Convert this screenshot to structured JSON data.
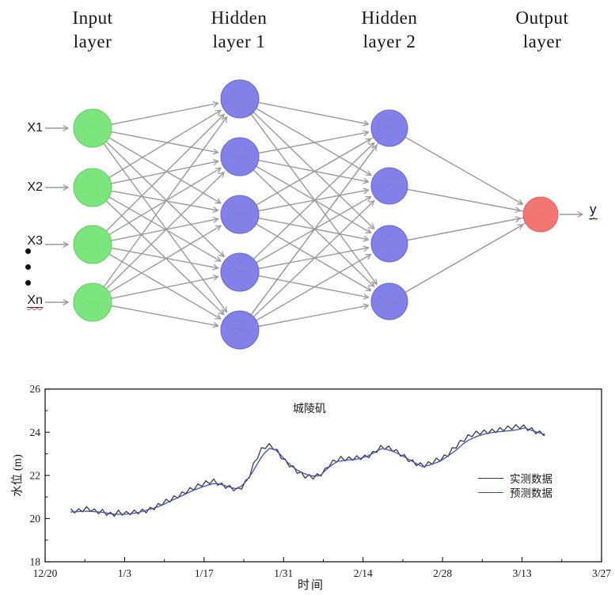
{
  "diagram": {
    "layer_titles": [
      {
        "line1": "Input",
        "line2": "layer"
      },
      {
        "line1": "Hidden",
        "line2": "layer 1"
      },
      {
        "line1": "Hidden",
        "line2": "layer 2"
      },
      {
        "line1": "Output",
        "line2": "layer"
      }
    ],
    "input_labels": [
      "X1",
      "X2",
      "X3",
      "Xn"
    ],
    "output_label": "y",
    "node_counts": [
      4,
      5,
      4,
      1
    ],
    "colors": {
      "input_fill": "#7de57d",
      "input_stroke": "#5ccf5c",
      "hidden_fill": "#8181e8",
      "hidden_stroke": "#6767d6",
      "output_fill": "#f27672",
      "output_stroke": "#e25f5b",
      "edge": "#9a9a9a",
      "accent_edge": "#8d8de8"
    }
  },
  "chart_data": {
    "type": "line",
    "title": "城陵矶",
    "xlabel": "时间",
    "ylabel": "水位 (m)",
    "x_unit": "days since 12/20",
    "xlim": [
      0,
      98
    ],
    "ylim": [
      18,
      26
    ],
    "x_ticks": [
      {
        "d": 0,
        "label": "12/20"
      },
      {
        "d": 14,
        "label": "1/3"
      },
      {
        "d": 28,
        "label": "1/17"
      },
      {
        "d": 42,
        "label": "1/31"
      },
      {
        "d": 56,
        "label": "2/14"
      },
      {
        "d": 70,
        "label": "2/28"
      },
      {
        "d": 84,
        "label": "3/13"
      },
      {
        "d": 98,
        "label": "3/27"
      }
    ],
    "x_minor_ticks": [
      7,
      21,
      35,
      49,
      63,
      77,
      91
    ],
    "y_ticks": [
      18,
      20,
      22,
      24,
      26
    ],
    "y_minor_ticks": [
      19,
      21,
      23,
      25
    ],
    "grid": false,
    "legend_position": "right-middle",
    "series": [
      {
        "name": "实测数据",
        "color": "#3b3b3b",
        "style": "jagged",
        "noise_amplitude": 0.12,
        "noise_step_days": 0.7,
        "points": [
          [
            4.5,
            20.4
          ],
          [
            6,
            20.35
          ],
          [
            7,
            20.45
          ],
          [
            8,
            20.4
          ],
          [
            9,
            20.3
          ],
          [
            10,
            20.35
          ],
          [
            11,
            20.25
          ],
          [
            12,
            20.2
          ],
          [
            13,
            20.3
          ],
          [
            14,
            20.2
          ],
          [
            15,
            20.25
          ],
          [
            16,
            20.3
          ],
          [
            17,
            20.35
          ],
          [
            18,
            20.4
          ],
          [
            19,
            20.5
          ],
          [
            20,
            20.6
          ],
          [
            21,
            20.75
          ],
          [
            22,
            20.85
          ],
          [
            23,
            21.0
          ],
          [
            24,
            21.15
          ],
          [
            25,
            21.3
          ],
          [
            26,
            21.4
          ],
          [
            27,
            21.5
          ],
          [
            28,
            21.6
          ],
          [
            29.5,
            21.75
          ],
          [
            31,
            21.6
          ],
          [
            32.5,
            21.45
          ],
          [
            34,
            21.3
          ],
          [
            35,
            21.5
          ],
          [
            36,
            22.0
          ],
          [
            37,
            22.7
          ],
          [
            38,
            23.2
          ],
          [
            39,
            23.4
          ],
          [
            40,
            23.35
          ],
          [
            41,
            23.05
          ],
          [
            42,
            22.7
          ],
          [
            43.5,
            22.4
          ],
          [
            45,
            22.1
          ],
          [
            46,
            21.95
          ],
          [
            47.5,
            21.9
          ],
          [
            49,
            22.1
          ],
          [
            50,
            22.5
          ],
          [
            51,
            22.7
          ],
          [
            52,
            22.8
          ],
          [
            53.5,
            22.75
          ],
          [
            55,
            22.8
          ],
          [
            56.5,
            22.85
          ],
          [
            58,
            23.1
          ],
          [
            59,
            23.3
          ],
          [
            60,
            23.3
          ],
          [
            61,
            23.2
          ],
          [
            62.5,
            23.0
          ],
          [
            64,
            22.75
          ],
          [
            65.5,
            22.55
          ],
          [
            66.5,
            22.45
          ],
          [
            68,
            22.55
          ],
          [
            69,
            22.7
          ],
          [
            70,
            22.8
          ],
          [
            71,
            23.0
          ],
          [
            72,
            23.3
          ],
          [
            73.5,
            23.6
          ],
          [
            75,
            23.85
          ],
          [
            76.5,
            24.0
          ],
          [
            78,
            24.05
          ],
          [
            80,
            24.1
          ],
          [
            82,
            24.2
          ],
          [
            84,
            24.3
          ],
          [
            85.5,
            24.15
          ],
          [
            87,
            23.95
          ],
          [
            88,
            23.9
          ]
        ]
      },
      {
        "name": "预测数据",
        "color": "#3f51c1",
        "style": "smooth",
        "points": [
          [
            4.5,
            20.3
          ],
          [
            7,
            20.35
          ],
          [
            10,
            20.3
          ],
          [
            12,
            20.2
          ],
          [
            14,
            20.2
          ],
          [
            16,
            20.25
          ],
          [
            18,
            20.4
          ],
          [
            20,
            20.55
          ],
          [
            22,
            20.8
          ],
          [
            24,
            21.05
          ],
          [
            26,
            21.3
          ],
          [
            28,
            21.5
          ],
          [
            30,
            21.65
          ],
          [
            32,
            21.5
          ],
          [
            34,
            21.35
          ],
          [
            36,
            21.9
          ],
          [
            37.5,
            22.6
          ],
          [
            39,
            23.2
          ],
          [
            40,
            23.3
          ],
          [
            41,
            23.1
          ],
          [
            42.5,
            22.65
          ],
          [
            44,
            22.3
          ],
          [
            45.5,
            22.1
          ],
          [
            47,
            21.95
          ],
          [
            48.5,
            22.0
          ],
          [
            50,
            22.4
          ],
          [
            51.5,
            22.65
          ],
          [
            53,
            22.7
          ],
          [
            55,
            22.75
          ],
          [
            57,
            22.9
          ],
          [
            58.5,
            23.15
          ],
          [
            59.5,
            23.25
          ],
          [
            61,
            23.15
          ],
          [
            63,
            22.9
          ],
          [
            65,
            22.6
          ],
          [
            66.5,
            22.4
          ],
          [
            68,
            22.5
          ],
          [
            69.5,
            22.65
          ],
          [
            71,
            22.9
          ],
          [
            72.5,
            23.2
          ],
          [
            74,
            23.55
          ],
          [
            75.5,
            23.75
          ],
          [
            77,
            23.9
          ],
          [
            79,
            24.0
          ],
          [
            81,
            24.05
          ],
          [
            83,
            24.1
          ],
          [
            84.5,
            24.2
          ],
          [
            86,
            24.05
          ],
          [
            88,
            23.9
          ]
        ]
      }
    ]
  }
}
